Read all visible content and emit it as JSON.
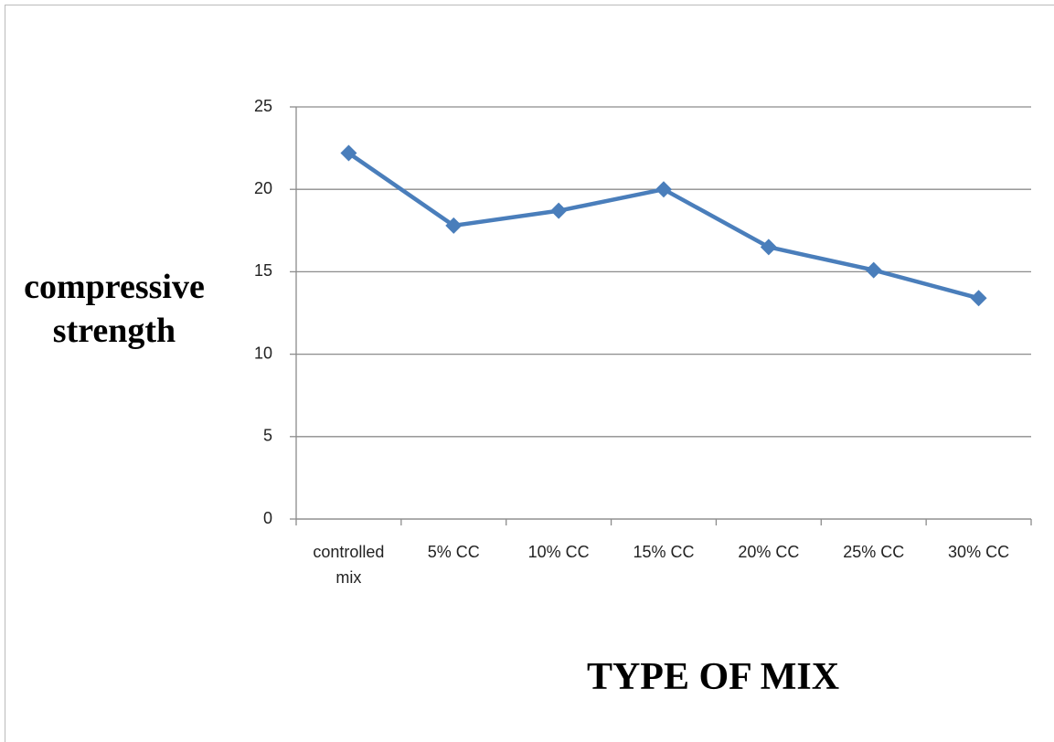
{
  "chart_data": {
    "type": "line",
    "x_label": "TYPE OF MIX",
    "y_label": "compressive strength",
    "categories": [
      "controlled mix",
      "5% CC",
      "10% CC",
      "15% CC",
      "20% CC",
      "25% CC",
      "30% CC"
    ],
    "series": [
      {
        "color": "#4a7ebb",
        "values": [
          22.2,
          17.8,
          18.7,
          20.0,
          16.5,
          15.1,
          13.4
        ]
      }
    ],
    "ylim": [
      0,
      25
    ],
    "yticks": [
      0,
      5,
      10,
      15,
      20,
      25
    ],
    "grid": true
  }
}
